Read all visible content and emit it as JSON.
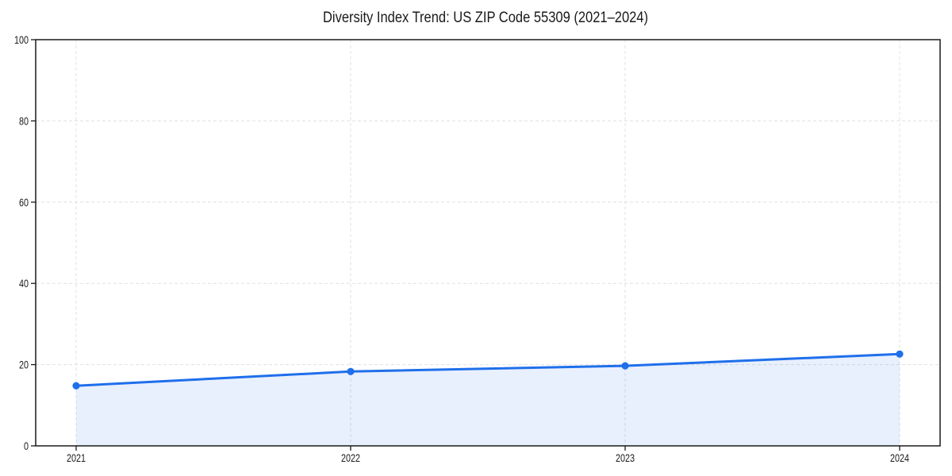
{
  "chart_data": {
    "type": "line",
    "title": "Diversity Index Trend: US ZIP Code 55309 (2021–2024)",
    "x": [
      "2021",
      "2022",
      "2023",
      "2024"
    ],
    "series": [
      {
        "name": "Diversity Index",
        "values": [
          14.8,
          18.3,
          19.7,
          22.6
        ]
      }
    ],
    "xlabel": "",
    "ylabel": "",
    "ylim": [
      0,
      100
    ],
    "yticks": [
      0,
      20,
      40,
      60,
      80,
      100
    ],
    "grid": "dashed",
    "legend": "none",
    "area_fill": true,
    "marker": "circle",
    "colors": {
      "line": "#1f6feb",
      "fill": "rgba(31,111,235,0.10)",
      "grid": "#e0e0e0",
      "axis": "#1a1a1a",
      "text": "#1a1a1a",
      "background": "#ffffff"
    }
  }
}
